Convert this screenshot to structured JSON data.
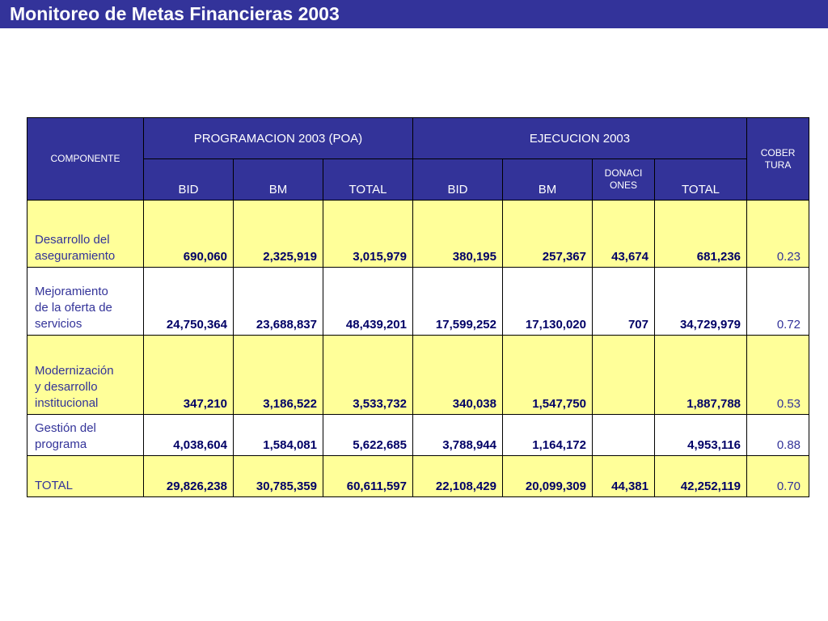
{
  "title": "Monitoreo de Metas Financieras 2003",
  "colors": {
    "title_bar": "#33339a",
    "header_bg": "#333399",
    "row_yellow": "#ffff99",
    "label_text": "#333399",
    "number_text": "#000066"
  },
  "table": {
    "header": {
      "componente": "COMPONENTE",
      "programacion": "PROGRAMACION 2003 (POA)",
      "ejecucion": "EJECUCION 2003",
      "cobertura_line1": "COBER",
      "cobertura_line2": "TURA",
      "prog_bid": "BID",
      "prog_bm": "BM",
      "prog_total": "TOTAL",
      "ejec_bid": "BID",
      "ejec_bm": "BM",
      "ejec_donaciones_line1": "DONACI",
      "ejec_donaciones_line2": "ONES",
      "ejec_total": "TOTAL"
    },
    "rows": [
      {
        "label": [
          "Desarrollo del",
          "aseguramiento"
        ],
        "prog_bid": "690,060",
        "prog_bm": "2,325,919",
        "prog_total": "3,015,979",
        "ejec_bid": "380,195",
        "ejec_bm": "257,367",
        "ejec_donaciones": "43,674",
        "ejec_total": "681,236",
        "cobertura": "0.23"
      },
      {
        "label": [
          "Mejoramiento",
          "de la oferta de",
          "servicios"
        ],
        "prog_bid": "24,750,364",
        "prog_bm": "23,688,837",
        "prog_total": "48,439,201",
        "ejec_bid": "17,599,252",
        "ejec_bm": "17,130,020",
        "ejec_donaciones": "707",
        "ejec_total": "34,729,979",
        "cobertura": "0.72"
      },
      {
        "label": [
          "Modernización",
          "y desarrollo",
          "institucional"
        ],
        "prog_bid": "347,210",
        "prog_bm": "3,186,522",
        "prog_total": "3,533,732",
        "ejec_bid": "340,038",
        "ejec_bm": "1,547,750",
        "ejec_donaciones": "",
        "ejec_total": "1,887,788",
        "cobertura": "0.53"
      },
      {
        "label": [
          "Gestión del",
          "programa"
        ],
        "prog_bid": "4,038,604",
        "prog_bm": "1,584,081",
        "prog_total": "5,622,685",
        "ejec_bid": "3,788,944",
        "ejec_bm": "1,164,172",
        "ejec_donaciones": "",
        "ejec_total": "4,953,116",
        "cobertura": "0.88"
      },
      {
        "label": [
          "TOTAL"
        ],
        "prog_bid": "29,826,238",
        "prog_bm": "30,785,359",
        "prog_total": "60,611,597",
        "ejec_bid": "22,108,429",
        "ejec_bm": "20,099,309",
        "ejec_donaciones": "44,381",
        "ejec_total": "42,252,119",
        "cobertura": "0.70"
      }
    ]
  }
}
